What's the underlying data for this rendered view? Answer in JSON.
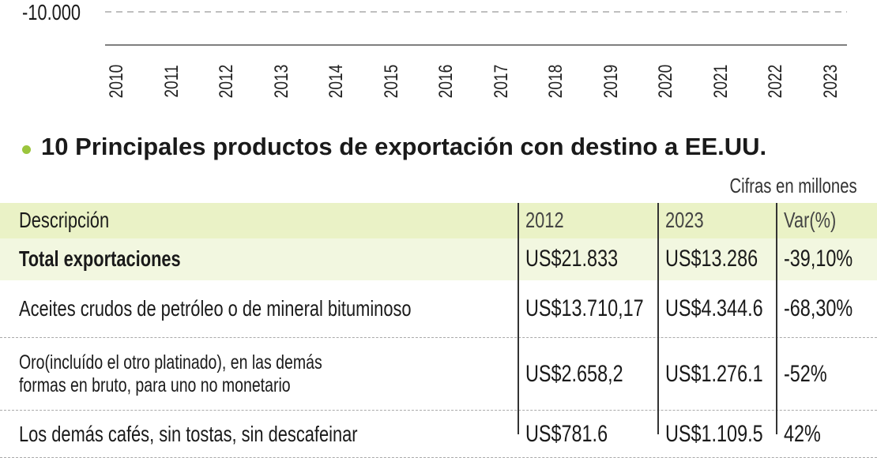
{
  "chart_fragment": {
    "ytick": "-10.000",
    "years": [
      "2010",
      "2011",
      "2012",
      "2013",
      "2014",
      "2015",
      "2016",
      "2017",
      "2018",
      "2019",
      "2020",
      "2021",
      "2022",
      "2023"
    ]
  },
  "section": {
    "title": "10 Principales productos de exportación con destino a EE.UU.",
    "note": "Cifras en millones"
  },
  "table": {
    "header": [
      "Descripción",
      "2012",
      "2023",
      "Var(%)"
    ],
    "rows": [
      [
        "Total exportaciones",
        "US$21.833",
        "US$13.286",
        "-39,10%"
      ],
      [
        "Aceites crudos de petróleo o de mineral bituminoso",
        "US$13.710,17",
        "US$4.344.6",
        "-68,30%"
      ],
      [
        "Oro(incluído el otro platinado), en las demás\nformas en bruto, para uno no monetario",
        "US$2.658,2",
        "US$1.276.1",
        "-52%"
      ],
      [
        "Los demás cafés, sin tostas, sin descafeinar",
        "US$781.6",
        "US$1.109.5",
        "42%"
      ]
    ]
  }
}
